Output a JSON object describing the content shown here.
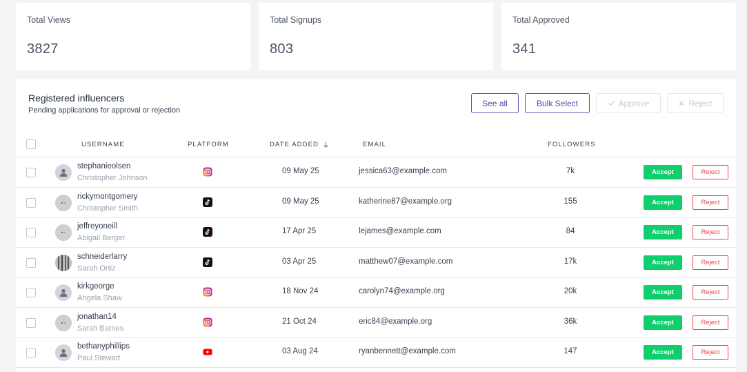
{
  "stats": [
    {
      "label": "Total Views",
      "value": "3827"
    },
    {
      "label": "Total Signups",
      "value": "803"
    },
    {
      "label": "Total Approved",
      "value": "341"
    }
  ],
  "panel": {
    "title": "Registered influencers",
    "subtitle": "Pending applications for approval or rejection"
  },
  "toolbar": {
    "see_all": "See all",
    "bulk_select": "Bulk Select",
    "approve": "Approve",
    "reject": "Reject",
    "approve_icon": "check-icon",
    "reject_icon": "x-icon"
  },
  "table": {
    "headers": {
      "username": "USERNAME",
      "platform": "PLATFORM",
      "date_added": "DATE ADDED",
      "email": "EMAIL",
      "followers": "FOLLOWERS"
    },
    "sort_icon": "arrow-down-icon",
    "accept_label": "Accept",
    "reject_label": "Reject",
    "rows": [
      {
        "username": "stephanieolsen",
        "name": "Christopher Johnson",
        "platform": "instagram",
        "date": "09 May 25",
        "email": "jessica63@example.com",
        "followers": "7k",
        "avatar": "default"
      },
      {
        "username": "rickymontgomery",
        "name": "Christopher Smith",
        "platform": "tiktok",
        "date": "09 May 25",
        "email": "katherine87@example.org",
        "followers": "155",
        "avatar": "photo"
      },
      {
        "username": "jeffreyoneill",
        "name": "Abigail Berger",
        "platform": "tiktok",
        "date": "17 Apr 25",
        "email": "lejames@example.com",
        "followers": "84",
        "avatar": "photo"
      },
      {
        "username": "schneiderlarry",
        "name": "Sarah Ortiz",
        "platform": "tiktok",
        "date": "03 Apr 25",
        "email": "matthew07@example.com",
        "followers": "17k",
        "avatar": "photo-dark"
      },
      {
        "username": "kirkgeorge",
        "name": "Angela Shaw",
        "platform": "instagram",
        "date": "18 Nov 24",
        "email": "carolyn74@example.org",
        "followers": "20k",
        "avatar": "default"
      },
      {
        "username": "jonathan14",
        "name": "Sarah Barnes",
        "platform": "instagram",
        "date": "21 Oct 24",
        "email": "eric84@example.org",
        "followers": "36k",
        "avatar": "photo"
      },
      {
        "username": "bethanyphillips",
        "name": "Paul Stewart",
        "platform": "youtube",
        "date": "03 Aug 24",
        "email": "ryanbennett@example.com",
        "followers": "147",
        "avatar": "default"
      }
    ]
  }
}
